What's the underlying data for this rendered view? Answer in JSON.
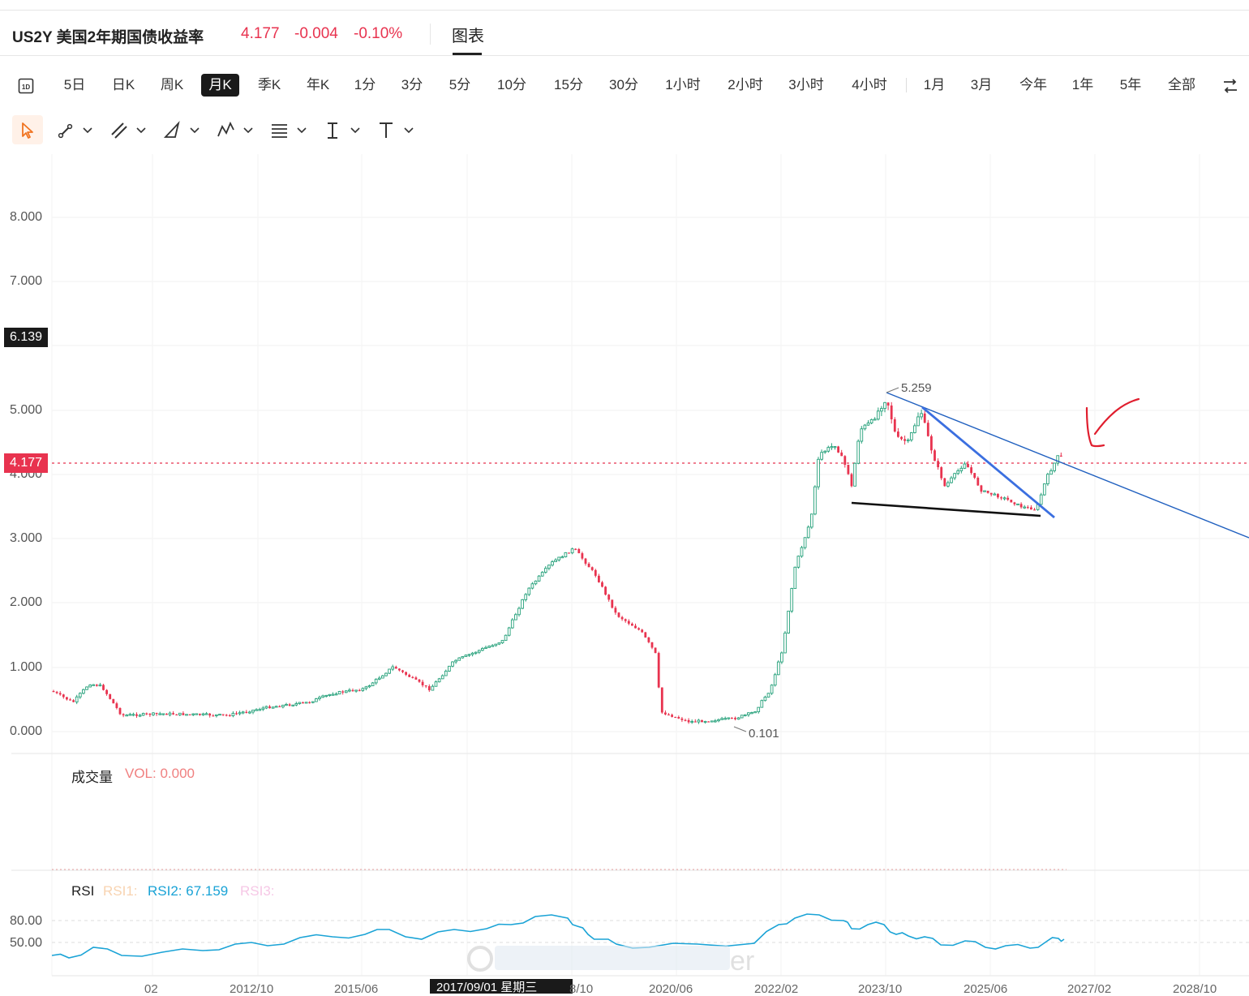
{
  "header": {
    "symbol": "US2Y 美国2年期国债收益率",
    "price": "4.177",
    "change": "-0.004",
    "change_pct": "-0.10%",
    "tab": "图表"
  },
  "periods": [
    "5日",
    "日K",
    "周K",
    "月K",
    "季K",
    "年K",
    "1分",
    "3分",
    "5分",
    "10分",
    "15分",
    "30分",
    "1小时",
    "2小时",
    "3小时",
    "4小时",
    "1月",
    "3月",
    "今年",
    "1年",
    "5年",
    "全部"
  ],
  "active_period": "月K",
  "y_axis": [
    "8.000",
    "7.000",
    "5.000",
    "4.000",
    "3.000",
    "2.000",
    "1.000",
    "0.000"
  ],
  "crosshair_badge": "6.139",
  "last_price_badge": "4.177",
  "annotations": {
    "high": "5.259",
    "low": "0.101"
  },
  "volume": {
    "title": "成交量",
    "value": "VOL: 0.000"
  },
  "rsi": {
    "title": "RSI",
    "rsi1": "RSI1:",
    "rsi2": "RSI2: 67.159",
    "rsi3": "RSI3:",
    "levels": [
      "80.00",
      "50.00"
    ]
  },
  "x_axis": [
    "02",
    "2012/10",
    "2015/06",
    "2017/09/01 星期三",
    "8/10",
    "2020/06",
    "2022/02",
    "2023/10",
    "2025/06",
    "2027/02",
    "2028/10"
  ],
  "colors": {
    "up": "#26a17b",
    "down": "#e8334f",
    "rsi_line": "#1aa3d6",
    "trendline": "#1f5fbf"
  }
}
